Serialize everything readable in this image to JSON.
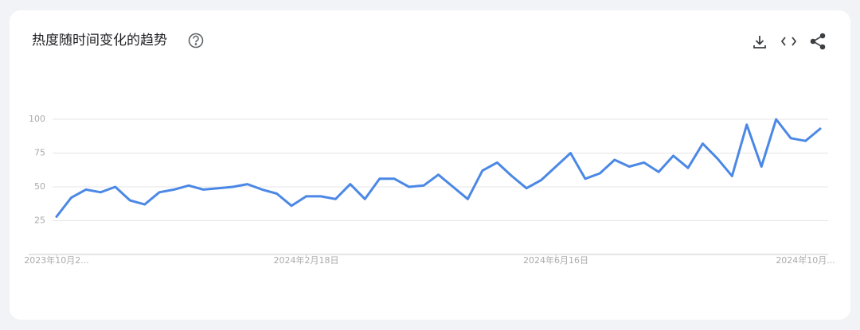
{
  "header": {
    "title": "热度随时间变化的趋势"
  },
  "chart_data": {
    "type": "line",
    "categories": [
      "2023年10月2...",
      null,
      null,
      null,
      null,
      null,
      null,
      null,
      null,
      null,
      null,
      null,
      null,
      null,
      null,
      null,
      null,
      "2024年2月18日",
      null,
      null,
      null,
      null,
      null,
      null,
      null,
      null,
      null,
      null,
      null,
      null,
      null,
      null,
      null,
      null,
      "2024年6月16日",
      null,
      null,
      null,
      null,
      null,
      null,
      null,
      null,
      null,
      null,
      null,
      null,
      null,
      null,
      null,
      null,
      "2024年10月...",
      null
    ],
    "values": [
      28,
      42,
      48,
      46,
      50,
      40,
      37,
      46,
      48,
      51,
      48,
      49,
      50,
      52,
      48,
      45,
      36,
      43,
      43,
      41,
      52,
      41,
      56,
      56,
      50,
      51,
      59,
      50,
      41,
      62,
      68,
      58,
      49,
      55,
      65,
      75,
      56,
      60,
      70,
      65,
      68,
      61,
      73,
      64,
      82,
      71,
      58,
      96,
      65,
      100,
      86,
      84,
      93
    ],
    "color": "#4b88e6",
    "ylim": [
      0,
      100
    ],
    "yticks": [
      25,
      50,
      75,
      100
    ],
    "grid": true
  }
}
